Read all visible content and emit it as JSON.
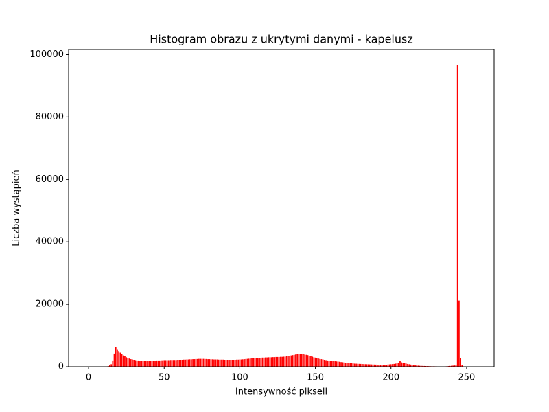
{
  "chart_data": {
    "type": "bar",
    "title": "Histogram obrazu z ukrytymi danymi - kapelusz",
    "x_label": "Intensywność pikseli",
    "y_label": "Liczba wystąpień",
    "color": "#ff0000",
    "x": [
      0,
      1,
      2,
      3,
      4,
      5,
      6,
      7,
      8,
      9,
      10,
      11,
      12,
      13,
      14,
      15,
      16,
      17,
      18,
      19,
      20,
      21,
      22,
      23,
      24,
      25,
      26,
      27,
      28,
      29,
      30,
      31,
      32,
      33,
      34,
      35,
      36,
      37,
      38,
      39,
      40,
      41,
      42,
      43,
      44,
      45,
      46,
      47,
      48,
      49,
      50,
      51,
      52,
      53,
      54,
      55,
      56,
      57,
      58,
      59,
      60,
      61,
      62,
      63,
      64,
      65,
      66,
      67,
      68,
      69,
      70,
      71,
      72,
      73,
      74,
      75,
      76,
      77,
      78,
      79,
      80,
      81,
      82,
      83,
      84,
      85,
      86,
      87,
      88,
      89,
      90,
      91,
      92,
      93,
      94,
      95,
      96,
      97,
      98,
      99,
      100,
      101,
      102,
      103,
      104,
      105,
      106,
      107,
      108,
      109,
      110,
      111,
      112,
      113,
      114,
      115,
      116,
      117,
      118,
      119,
      120,
      121,
      122,
      123,
      124,
      125,
      126,
      127,
      128,
      129,
      130,
      131,
      132,
      133,
      134,
      135,
      136,
      137,
      138,
      139,
      140,
      141,
      142,
      143,
      144,
      145,
      146,
      147,
      148,
      149,
      150,
      151,
      152,
      153,
      154,
      155,
      156,
      157,
      158,
      159,
      160,
      161,
      162,
      163,
      164,
      165,
      166,
      167,
      168,
      169,
      170,
      171,
      172,
      173,
      174,
      175,
      176,
      177,
      178,
      179,
      180,
      181,
      182,
      183,
      184,
      185,
      186,
      187,
      188,
      189,
      190,
      191,
      192,
      193,
      194,
      195,
      196,
      197,
      198,
      199,
      200,
      201,
      202,
      203,
      204,
      205,
      206,
      207,
      208,
      209,
      210,
      211,
      212,
      213,
      214,
      215,
      216,
      217,
      218,
      219,
      220,
      221,
      222,
      223,
      224,
      225,
      226,
      227,
      228,
      229,
      230,
      231,
      232,
      233,
      234,
      235,
      236,
      237,
      238,
      239,
      240,
      241,
      242,
      243,
      244,
      245,
      246,
      247,
      248,
      249,
      250,
      251,
      252,
      253,
      254,
      255
    ],
    "values": [
      0,
      0,
      0,
      0,
      0,
      0,
      0,
      0,
      0,
      0,
      0,
      0,
      0,
      200,
      500,
      800,
      2000,
      4200,
      6300,
      5600,
      5000,
      4500,
      4000,
      3600,
      3300,
      3000,
      2800,
      2600,
      2400,
      2300,
      2200,
      2100,
      2000,
      2000,
      1950,
      1950,
      1900,
      1900,
      1900,
      1900,
      1900,
      1900,
      1900,
      1950,
      1950,
      2000,
      2000,
      2000,
      2050,
      2050,
      2100,
      2100,
      2100,
      2100,
      2150,
      2150,
      2150,
      2150,
      2150,
      2200,
      2200,
      2200,
      2200,
      2250,
      2250,
      2300,
      2300,
      2350,
      2350,
      2400,
      2400,
      2450,
      2450,
      2500,
      2500,
      2500,
      2500,
      2450,
      2450,
      2400,
      2400,
      2350,
      2350,
      2300,
      2300,
      2300,
      2250,
      2250,
      2250,
      2250,
      2200,
      2200,
      2200,
      2200,
      2200,
      2200,
      2200,
      2200,
      2250,
      2250,
      2300,
      2300,
      2350,
      2400,
      2450,
      2500,
      2550,
      2600,
      2650,
      2700,
      2750,
      2800,
      2800,
      2850,
      2850,
      2900,
      2900,
      2950,
      2950,
      3000,
      3000,
      3000,
      3050,
      3050,
      3100,
      3100,
      3100,
      3150,
      3150,
      3200,
      3200,
      3300,
      3400,
      3500,
      3600,
      3700,
      3800,
      3900,
      4000,
      4050,
      4100,
      4050,
      4000,
      3900,
      3800,
      3700,
      3500,
      3400,
      3200,
      3000,
      2900,
      2750,
      2600,
      2500,
      2400,
      2300,
      2200,
      2100,
      2000,
      1950,
      1900,
      1850,
      1800,
      1750,
      1700,
      1650,
      1600,
      1500,
      1450,
      1400,
      1300,
      1250,
      1200,
      1150,
      1100,
      1050,
      1000,
      980,
      950,
      920,
      900,
      880,
      850,
      820,
      800,
      780,
      760,
      740,
      720,
      700,
      680,
      660,
      640,
      620,
      600,
      600,
      620,
      650,
      700,
      750,
      800,
      850,
      900,
      1000,
      1100,
      1300,
      1800,
      1400,
      1200,
      1100,
      1000,
      900,
      800,
      700,
      600,
      500,
      450,
      400,
      350,
      300,
      280,
      260,
      240,
      220,
      200,
      180,
      160,
      150,
      140,
      130,
      120,
      110,
      100,
      100,
      100,
      100,
      120,
      150,
      200,
      250,
      300,
      350,
      400,
      500,
      96800,
      21200,
      2700,
      500,
      100,
      0,
      0,
      0,
      0,
      0,
      0,
      0
    ],
    "xlim": [
      -13.19,
      268.19
    ],
    "xticks": [
      0,
      50,
      100,
      150,
      200,
      250
    ],
    "ylim": [
      0,
      101640
    ],
    "yticks": [
      0,
      20000,
      40000,
      60000,
      80000,
      100000
    ]
  }
}
